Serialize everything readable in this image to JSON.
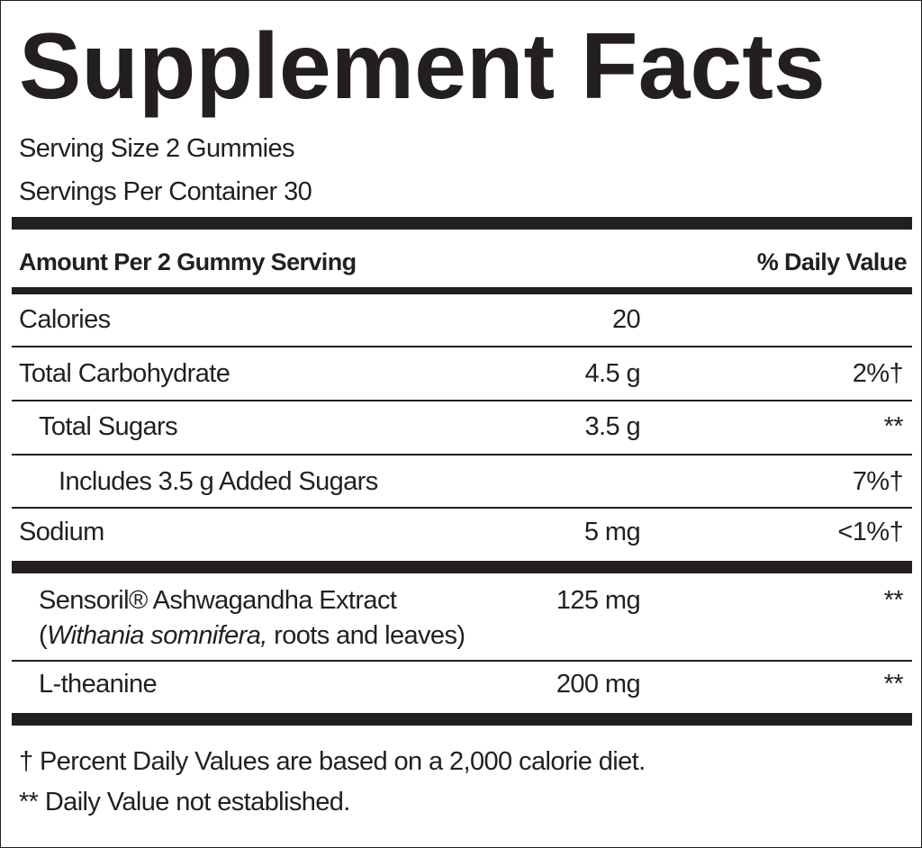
{
  "title": "Supplement Facts",
  "serving_size": "Serving Size 2 Gummies",
  "servings_per_container": "Servings Per Container 30",
  "table": {
    "header": [
      "Amount Per 2 Gummy Serving",
      "% Daily Value"
    ],
    "rows": [
      {
        "name": "Calories",
        "amount": "20"
      },
      {
        "name": "Total Carbohydrate",
        "amount": "4.5 g",
        "dv": "2%†"
      },
      {
        "name": "Total Sugars",
        "amount": "3.5 g",
        "dv": "**"
      },
      {
        "name": "Includes 3.5 g Added Sugars",
        "dv": "7%†"
      },
      {
        "name": "Sodium",
        "amount": "5 mg",
        "dv": "<1%†"
      },
      {
        "name": [
          "Sensoril® Ashwagandha Extract",
          "(",
          "Withania somnifera,",
          " roots and leaves)"
        ],
        "amount": "125 mg",
        "dv": "**"
      },
      {
        "name": "L-theanine",
        "amount": "200 mg",
        "dv": "**"
      }
    ]
  },
  "footnotes": [
    "† Percent Daily Values are based on a 2,000 calorie diet.",
    "** Daily Value not established."
  ]
}
